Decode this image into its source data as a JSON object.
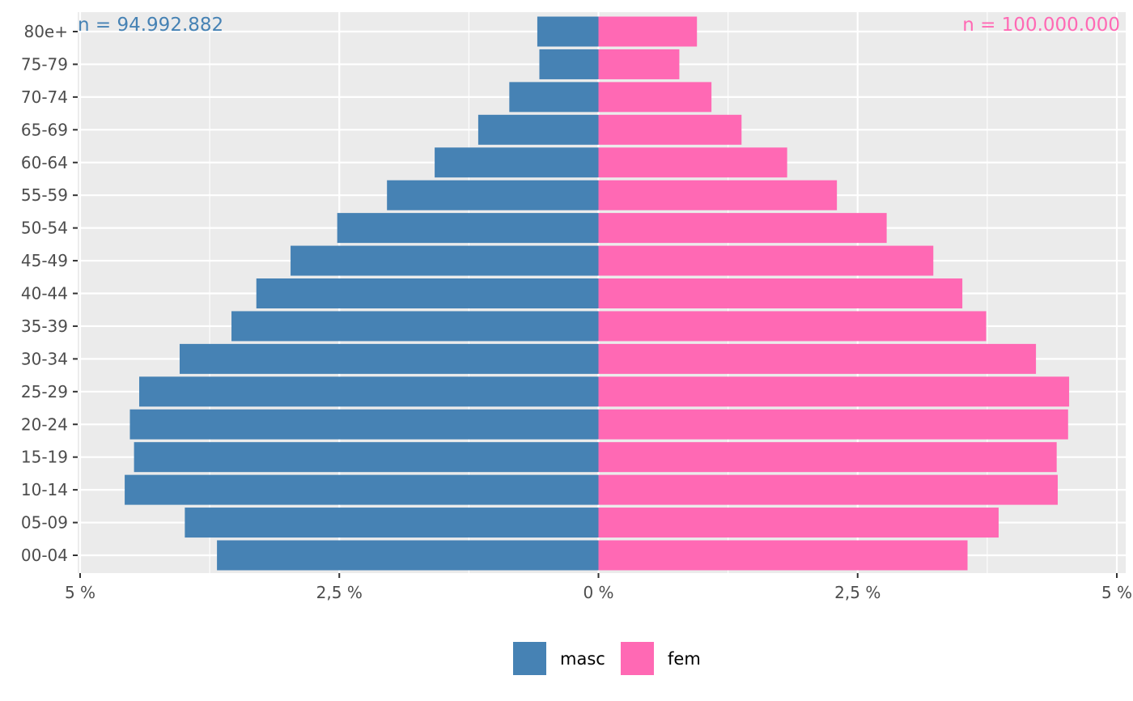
{
  "chart_data": {
    "type": "bar",
    "orientation": "horizontal",
    "layout": "population-pyramid",
    "categories": [
      "00-04",
      "05-09",
      "10-14",
      "15-19",
      "20-24",
      "25-29",
      "30-34",
      "35-39",
      "40-44",
      "45-49",
      "50-54",
      "55-59",
      "60-64",
      "65-69",
      "70-74",
      "75-79",
      "80e+"
    ],
    "series": [
      {
        "name": "masc",
        "side": "left",
        "color": "#4682b4",
        "total_label": "n = 94.992.882",
        "values": [
          3.68,
          3.99,
          4.57,
          4.48,
          4.52,
          4.43,
          4.04,
          3.54,
          3.3,
          2.97,
          2.52,
          2.04,
          1.58,
          1.16,
          0.86,
          0.57,
          0.59
        ]
      },
      {
        "name": "fem",
        "side": "right",
        "color": "#ff69b4",
        "total_label": "n = 100.000.000",
        "values": [
          3.56,
          3.86,
          4.43,
          4.42,
          4.53,
          4.54,
          4.22,
          3.74,
          3.51,
          3.23,
          2.78,
          2.3,
          1.82,
          1.38,
          1.09,
          0.78,
          0.95
        ]
      }
    ],
    "xlim": [
      -5,
      5
    ],
    "x_ticks": [
      -5,
      -2.5,
      0,
      2.5,
      5
    ],
    "x_tick_labels": [
      "5 %",
      "2,5 %",
      "0 %",
      "2,5 %",
      "5 %"
    ],
    "title": "",
    "xlabel": "",
    "ylabel": "",
    "grid": true,
    "legend_position": "bottom",
    "panel_background": "#ebebeb",
    "grid_color": "#ffffff"
  }
}
